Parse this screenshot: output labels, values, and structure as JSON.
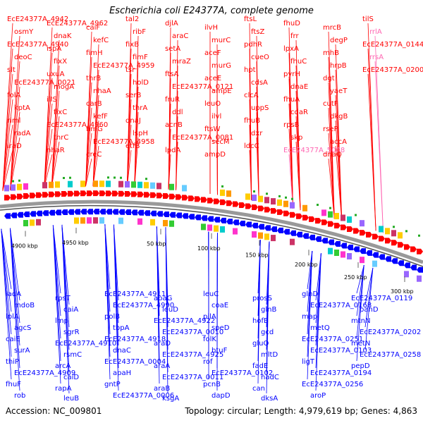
{
  "title": "Escherichia coli E24377A, complete genome",
  "footer": {
    "accession": "Accession: NC_009801",
    "stats": "Topology: circular; Length: 4,979,619 bp; Genes: 4,863"
  },
  "colors": {
    "forward": "#ff0000",
    "reverse": "#0000ff",
    "highlight": "#ff66b2",
    "scale": "#999999"
  },
  "scale_ticks": [
    "4900 kbp",
    "4950 kbp",
    "50 kbp",
    "100 kbp",
    "150 kbp",
    "200 kbp",
    "250 kbp",
    "300 kbp"
  ],
  "top_labels": [
    "EcE24377A_4942",
    "osmY",
    "EcE24377A_4940",
    "deoC",
    "slt",
    "EcE24377A_0021",
    "folA",
    "kptA",
    "riml",
    "radA",
    "iraD",
    "EcE24377A_4962",
    "dnaK",
    "ispA",
    "fixX",
    "uxuA",
    "mogA",
    "ilIS",
    "fixC",
    "EcE24377A_4960",
    "thrC",
    "nhaR",
    "caiF",
    "kefC",
    "fimH",
    "EcE24377A_4959",
    "thrB",
    "nhaA",
    "carB",
    "kefF",
    "fimG",
    "EcE24377A_4958",
    "creC",
    "tal2",
    "ribF",
    "fixB",
    "fimF",
    "tsr",
    "holD",
    "serB",
    "thrA",
    "dnaJ",
    "lspH",
    "etfB",
    "djlA",
    "araC",
    "setA",
    "mraZ",
    "ftsA",
    "EcE24377A_0121",
    "fruR",
    "ddl",
    "acnB",
    "EcE24377A_0081",
    "lpdA",
    "ilvH",
    "murC",
    "aceF",
    "murG",
    "aceE",
    "ampE",
    "leuO",
    "ilvl",
    "ftsW",
    "secM",
    "ampD",
    "ftsL",
    "ftsZ",
    "pdhR",
    "cueO",
    "hpt",
    "cdsA",
    "clcA",
    "uppS",
    "fhuB",
    "dxr",
    "ldcC",
    "fhuD",
    "frr",
    "lpxA",
    "fhuC",
    "pyrH",
    "dnaE",
    "fhuA",
    "cdaR",
    "rpsB",
    "skp",
    "EcE24377A_5008",
    "mrcB",
    "degP",
    "mhB",
    "hrpB",
    "dgt",
    "yaeT",
    "cutF",
    "dkgB",
    "rseP",
    "accA",
    "dnaQ",
    "tilS",
    "rrlA",
    "EcE24377A_0144",
    "rrsA",
    "EcE24377A_0200"
  ],
  "bottom_labels": [
    "iadA",
    "mdoB",
    "lplA",
    "agcS",
    "caiE",
    "surA",
    "thiP",
    "EcE24377A_4909",
    "fhuF",
    "rob",
    "rpsT",
    "caiA",
    "lmp",
    "sgrR",
    "EcE24377A_4910",
    "rsmC",
    "arcA",
    "caiD",
    "rapA",
    "leuB",
    "EcE24377A_4911",
    "EcE24377A_4990",
    "polB",
    "tbpA",
    "EcE24377A_4918",
    "dnaC",
    "EcE24377A_0004",
    "apaH",
    "gntP",
    "EcE24377A_0006",
    "apaG",
    "leuD",
    "EcE24377A_4922",
    "EcE24377A_0010",
    "araD",
    "EcE24377A_4925",
    "araA",
    "EcE24377A_0011",
    "araB",
    "ksgA",
    "leuC",
    "coaE",
    "pilA",
    "speD",
    "folK",
    "btuF",
    "rof",
    "EcE24377A_0102",
    "pcnB",
    "dapD",
    "prosS",
    "glnB",
    "hofB",
    "gcd",
    "gluQ",
    "mltD",
    "fadE",
    "nadC",
    "can",
    "dksA",
    "glnD",
    "EcE24377A_0168",
    "map",
    "metQ",
    "EcE24377A_0251",
    "EcE24377A_0103",
    "ligT",
    "EcE24377A_0194",
    "EcE24377A_0256",
    "aroP",
    "EcE24377A_0119",
    "panD",
    "mtnN",
    "EcE24377A_0202",
    "metN",
    "EcE24377A_0258",
    "pepD"
  ]
}
